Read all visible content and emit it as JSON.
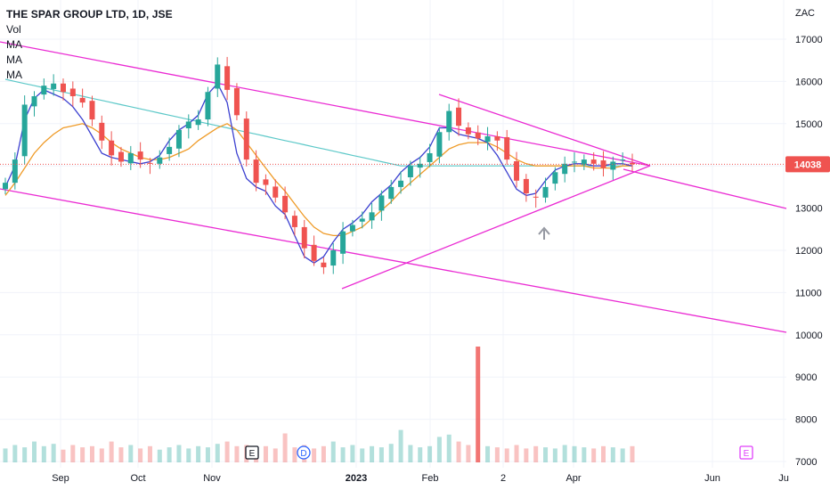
{
  "legend": {
    "title": "THE SPAR GROUP LTD, 1D, JSE",
    "vol": "Vol",
    "ma1": "MA",
    "ma2": "MA",
    "ma3": "MA"
  },
  "chart_data": {
    "type": "candlestick",
    "currency": "ZAC",
    "last_price_label": "14038",
    "last_price": 14038,
    "y_ticks": [
      17000,
      16000,
      15000,
      14000,
      13000,
      12000,
      11000,
      10000,
      9000,
      8000,
      7000
    ],
    "ylim": [
      6900,
      17500
    ],
    "x_ticks": [
      "Sep",
      "Oct",
      "Nov",
      "2023",
      "Feb",
      "2",
      "Apr",
      "Jun",
      "Ju"
    ],
    "markers": [
      {
        "label": "E",
        "kind": "earnings-past",
        "color": "#131722"
      },
      {
        "label": "D",
        "kind": "dividend",
        "color": "#2962ff"
      },
      {
        "label": "E",
        "kind": "earnings-future",
        "color": "#e040fb"
      }
    ],
    "series": [
      {
        "values": [
          13600,
          14150,
          15450,
          15650,
          15900,
          15950,
          15750,
          15650,
          15500,
          15100,
          14600,
          14250,
          14100,
          14300,
          14150,
          14050,
          14200,
          14450,
          14850,
          15050,
          15100,
          15750,
          16400,
          15800,
          15200,
          14150,
          13600,
          13550,
          13250,
          12900,
          12550,
          12050,
          11750,
          11600,
          12000,
          12450,
          12600,
          12750,
          12900,
          13300,
          13500,
          13650,
          14000,
          14050,
          14300,
          14800,
          15300,
          14950,
          14750,
          14650,
          14700,
          14600,
          14150,
          13650,
          13350,
          13250,
          13500,
          13850,
          14050,
          14100,
          14150,
          14050,
          13950,
          14100,
          14150,
          14038
        ]
      },
      {
        "values": [
          13500,
          14000,
          15100,
          15600,
          15800,
          15700,
          15600,
          15400,
          15100,
          14700,
          14300,
          14200,
          14150,
          14100,
          14050,
          14100,
          14250,
          14600,
          14850,
          15000,
          15200,
          15700,
          15950,
          15500,
          14300,
          13700,
          13500,
          13400,
          13050,
          12850,
          12350,
          11850,
          11700,
          11850,
          12200,
          12500,
          12650,
          12850,
          13150,
          13350,
          13550,
          13850,
          14050,
          14200,
          14450,
          14900,
          14900,
          14750,
          14700,
          14650,
          14550,
          14250,
          13850,
          13450,
          13300,
          13350,
          13650,
          13900,
          14000,
          14050,
          14050,
          14000,
          14000,
          14050,
          14050,
          14000
        ]
      },
      {
        "values": [
          13300,
          13600,
          13950,
          14300,
          14550,
          14750,
          14900,
          14950,
          15000,
          14900,
          14750,
          14550,
          14400,
          14300,
          14200,
          14150,
          14150,
          14200,
          14300,
          14400,
          14600,
          14750,
          14900,
          15000,
          14850,
          14550,
          14250,
          13950,
          13650,
          13400,
          13100,
          12800,
          12550,
          12400,
          12350,
          12350,
          12450,
          12550,
          12750,
          12950,
          13150,
          13400,
          13600,
          13800,
          14000,
          14200,
          14400,
          14500,
          14550,
          14550,
          14550,
          14450,
          14300,
          14150,
          14050,
          14000,
          14000,
          14000,
          14000,
          14000,
          14000,
          13950,
          13950,
          13950,
          14000,
          14000
        ]
      },
      {
        "values": [
          16050,
          16000,
          15950,
          15900,
          15850,
          15800,
          15750,
          15700,
          15650,
          15600,
          15550,
          15500,
          15450,
          15400,
          15350,
          15300,
          15250,
          15200,
          15150,
          15100,
          15050,
          15000,
          14950,
          14900,
          14850,
          14800,
          14750,
          14700,
          14650,
          14600,
          14550,
          14500,
          14450,
          14400,
          14350,
          14300,
          14250,
          14200,
          14150,
          14100,
          14050,
          14000,
          14000,
          14000,
          14000,
          14000,
          14000,
          14000,
          14000,
          14000,
          14000,
          14000,
          14000,
          14000,
          14000,
          14000,
          14000,
          14000,
          14000,
          14000,
          14000,
          14000,
          14000,
          14000,
          14000,
          14000
        ]
      }
    ],
    "volume": [
      0.12,
      0.15,
      0.13,
      0.18,
      0.14,
      0.16,
      0.11,
      0.15,
      0.13,
      0.14,
      0.12,
      0.18,
      0.13,
      0.15,
      0.12,
      0.14,
      0.11,
      0.13,
      0.15,
      0.12,
      0.14,
      0.13,
      0.16,
      0.18,
      0.14,
      0.15,
      0.13,
      0.14,
      0.12,
      0.25,
      0.13,
      0.15,
      0.12,
      0.14,
      0.18,
      0.13,
      0.15,
      0.12,
      0.14,
      0.13,
      0.16,
      0.28,
      0.15,
      0.13,
      0.14,
      0.22,
      0.24,
      0.18,
      0.15,
      1.0,
      0.14,
      0.13,
      0.12,
      0.15,
      0.12,
      0.14,
      0.13,
      0.12,
      0.15,
      0.14,
      0.13,
      0.12,
      0.14,
      0.13,
      0.12,
      0.14
    ]
  },
  "colors": {
    "up": "#26a69a",
    "down": "#ef5350",
    "trendline": "#ea2bd3",
    "ma_fast": "#3c40d0",
    "ma_mid": "#ef9b28",
    "ma_slow": "#5cc8c8",
    "arrow": "#9598a1",
    "grid": "#f0f3fa",
    "price_line": "#ef5350"
  }
}
